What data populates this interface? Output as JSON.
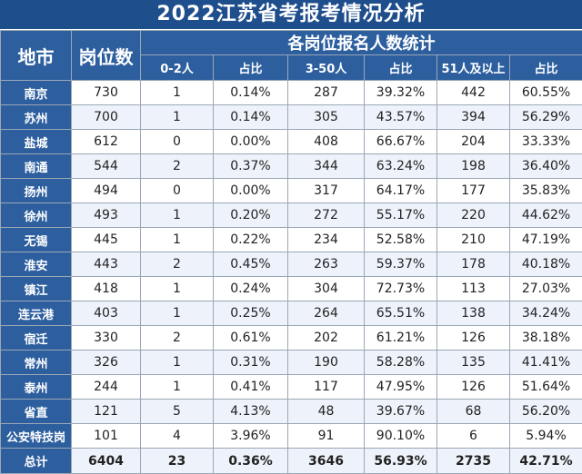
{
  "title": "2022江苏省考报考情况分析",
  "header": {
    "city": "地市",
    "positions": "岗位数",
    "group": "各岗位报名人数统计",
    "sub": [
      "0-2人",
      "占比",
      "3-50人",
      "占比",
      "51人及以上",
      "占比"
    ]
  },
  "rows": [
    {
      "city": "南京",
      "positions": "730",
      "c1": "1",
      "p1": "0.14%",
      "c2": "287",
      "p2": "39.32%",
      "c3": "442",
      "p3": "60.55%"
    },
    {
      "city": "苏州",
      "positions": "700",
      "c1": "1",
      "p1": "0.14%",
      "c2": "305",
      "p2": "43.57%",
      "c3": "394",
      "p3": "56.29%"
    },
    {
      "city": "盐城",
      "positions": "612",
      "c1": "0",
      "p1": "0.00%",
      "c2": "408",
      "p2": "66.67%",
      "c3": "204",
      "p3": "33.33%"
    },
    {
      "city": "南通",
      "positions": "544",
      "c1": "2",
      "p1": "0.37%",
      "c2": "344",
      "p2": "63.24%",
      "c3": "198",
      "p3": "36.40%"
    },
    {
      "city": "扬州",
      "positions": "494",
      "c1": "0",
      "p1": "0.00%",
      "c2": "317",
      "p2": "64.17%",
      "c3": "177",
      "p3": "35.83%"
    },
    {
      "city": "徐州",
      "positions": "493",
      "c1": "1",
      "p1": "0.20%",
      "c2": "272",
      "p2": "55.17%",
      "c3": "220",
      "p3": "44.62%"
    },
    {
      "city": "无锡",
      "positions": "445",
      "c1": "1",
      "p1": "0.22%",
      "c2": "234",
      "p2": "52.58%",
      "c3": "210",
      "p3": "47.19%"
    },
    {
      "city": "淮安",
      "positions": "443",
      "c1": "2",
      "p1": "0.45%",
      "c2": "263",
      "p2": "59.37%",
      "c3": "178",
      "p3": "40.18%"
    },
    {
      "city": "镇江",
      "positions": "418",
      "c1": "1",
      "p1": "0.24%",
      "c2": "304",
      "p2": "72.73%",
      "c3": "113",
      "p3": "27.03%"
    },
    {
      "city": "连云港",
      "positions": "403",
      "c1": "1",
      "p1": "0.25%",
      "c2": "264",
      "p2": "65.51%",
      "c3": "138",
      "p3": "34.24%"
    },
    {
      "city": "宿迁",
      "positions": "330",
      "c1": "2",
      "p1": "0.61%",
      "c2": "202",
      "p2": "61.21%",
      "c3": "126",
      "p3": "38.18%"
    },
    {
      "city": "常州",
      "positions": "326",
      "c1": "1",
      "p1": "0.31%",
      "c2": "190",
      "p2": "58.28%",
      "c3": "135",
      "p3": "41.41%"
    },
    {
      "city": "泰州",
      "positions": "244",
      "c1": "1",
      "p1": "0.41%",
      "c2": "117",
      "p2": "47.95%",
      "c3": "126",
      "p3": "51.64%"
    },
    {
      "city": "省直",
      "positions": "121",
      "c1": "5",
      "p1": "4.13%",
      "c2": "48",
      "p2": "39.67%",
      "c3": "68",
      "p3": "56.20%"
    },
    {
      "city": "公安特技岗",
      "positions": "101",
      "c1": "4",
      "p1": "3.96%",
      "c2": "91",
      "p2": "90.10%",
      "c3": "6",
      "p3": "5.94%"
    }
  ],
  "total": {
    "city": "总计",
    "positions": "6404",
    "c1": "23",
    "p1": "0.36%",
    "c2": "3646",
    "p2": "56.93%",
    "c3": "2735",
    "p3": "42.71%"
  }
}
